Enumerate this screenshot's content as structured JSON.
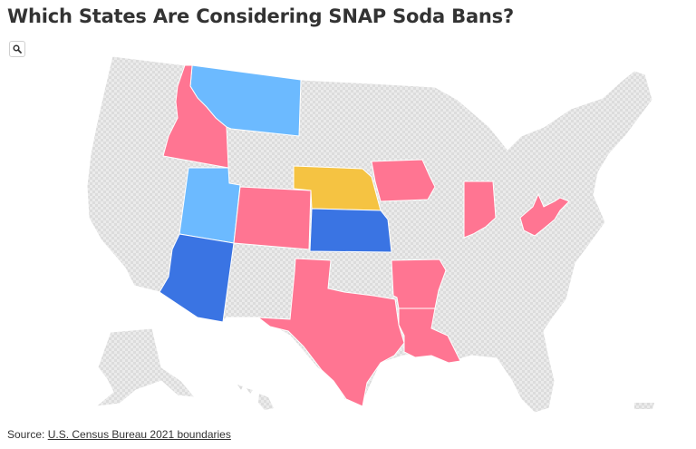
{
  "title": "Which States Are Considering SNAP Soda Bans?",
  "zoom_icon": "search-icon",
  "map": {
    "colors": {
      "base_pattern": "#e6e6e6",
      "pink": "#ff7592",
      "light_blue": "#6cbaff",
      "dark_blue": "#3a74e3",
      "yellow": "#f5c342"
    },
    "highlighted_states": [
      {
        "state": "Idaho",
        "color": "#ff7592"
      },
      {
        "state": "Colorado",
        "color": "#ff7592"
      },
      {
        "state": "Texas",
        "color": "#ff7592"
      },
      {
        "state": "Arkansas",
        "color": "#ff7592"
      },
      {
        "state": "Louisiana",
        "color": "#ff7592"
      },
      {
        "state": "Iowa",
        "color": "#ff7592"
      },
      {
        "state": "Indiana",
        "color": "#ff7592"
      },
      {
        "state": "West Virginia",
        "color": "#ff7592"
      },
      {
        "state": "Montana",
        "color": "#6cbaff"
      },
      {
        "state": "Utah",
        "color": "#6cbaff"
      },
      {
        "state": "Arizona",
        "color": "#3a74e3"
      },
      {
        "state": "Kansas",
        "color": "#3a74e3"
      },
      {
        "state": "Nebraska",
        "color": "#f5c342"
      }
    ]
  },
  "source": {
    "prefix": "Source: ",
    "link_text": "U.S. Census Bureau 2021 boundaries"
  }
}
